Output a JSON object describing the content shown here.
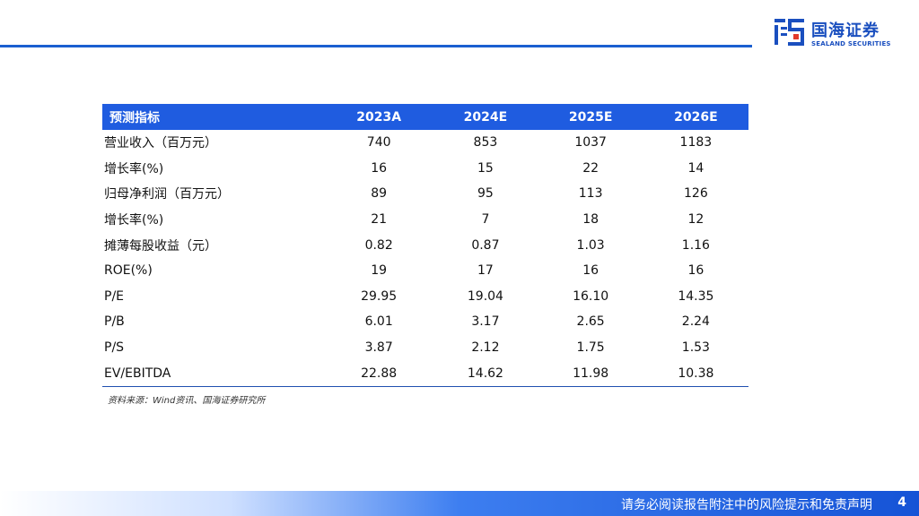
{
  "brand": {
    "name_cn": "国海证券",
    "name_en": "SEALAND SECURITIES",
    "color": "#1a4fbf"
  },
  "table": {
    "header": [
      "预测指标",
      "2023A",
      "2024E",
      "2025E",
      "2026E"
    ],
    "rows": [
      {
        "label": "营业收入（百万元）",
        "values": [
          "740",
          "853",
          "1037",
          "1183"
        ]
      },
      {
        "label": "增长率(%)",
        "values": [
          "16",
          "15",
          "22",
          "14"
        ]
      },
      {
        "label": "归母净利润（百万元）",
        "values": [
          "89",
          "95",
          "113",
          "126"
        ]
      },
      {
        "label": "增长率(%)",
        "values": [
          "21",
          "7",
          "18",
          "12"
        ]
      },
      {
        "label": "摊薄每股收益（元）",
        "values": [
          "0.82",
          "0.87",
          "1.03",
          "1.16"
        ]
      },
      {
        "label": "ROE(%)",
        "values": [
          "19",
          "17",
          "16",
          "16"
        ]
      },
      {
        "label": "P/E",
        "values": [
          "29.95",
          "19.04",
          "16.10",
          "14.35"
        ]
      },
      {
        "label": "P/B",
        "values": [
          "6.01",
          "3.17",
          "2.65",
          "2.24"
        ]
      },
      {
        "label": "P/S",
        "values": [
          "3.87",
          "2.12",
          "1.75",
          "1.53"
        ]
      },
      {
        "label": "EV/EBITDA",
        "values": [
          "22.88",
          "14.62",
          "11.98",
          "10.38"
        ]
      }
    ]
  },
  "source": "资料来源：Wind资讯、国海证券研究所",
  "footer": {
    "disclaimer": "请务必阅读报告附注中的风险提示和免责声明",
    "page_number": "4"
  },
  "colors": {
    "header_bg": "#1f5ce0",
    "accent": "#1a5fd0"
  }
}
